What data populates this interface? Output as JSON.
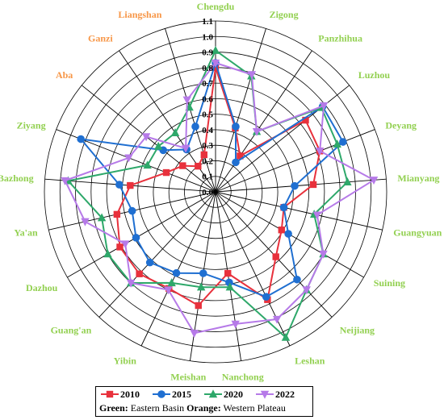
{
  "chart_data": {
    "type": "radar",
    "categories": [
      "Chengdu",
      "Zigong",
      "Panzhihua",
      "Luzhou",
      "Deyang",
      "Mianyang",
      "Guangyuan",
      "Suining",
      "Neijiang",
      "Leshan",
      "Nanchong",
      "Meishan",
      "Yibin",
      "Guang'an",
      "Dazhou",
      "Ya'an",
      "Bazhong",
      "Ziyang",
      "Aba",
      "Ganzi",
      "Liangshan"
    ],
    "category_colors": [
      "#92d050",
      "#92d050",
      "#92d050",
      "#92d050",
      "#92d050",
      "#92d050",
      "#92d050",
      "#92d050",
      "#92d050",
      "#92d050",
      "#92d050",
      "#92d050",
      "#92d050",
      "#92d050",
      "#92d050",
      "#92d050",
      "#92d050",
      "#92d050",
      "#f79646",
      "#f79646",
      "#f79646"
    ],
    "rlim": [
      0,
      1.1
    ],
    "ticks": [
      "0.0",
      "0.1",
      "0.2",
      "0.3",
      "0.4",
      "0.5",
      "0.6",
      "0.7",
      "0.8",
      "0.9",
      "1.0",
      "1.1"
    ],
    "series": [
      {
        "name": "2010",
        "color": "#e8313c",
        "marker": "square",
        "values": [
          0.8,
          0.43,
          0.28,
          0.74,
          0.72,
          0.63,
          0.45,
          0.49,
          0.57,
          0.77,
          0.53,
          0.74,
          0.69,
          0.72,
          0.71,
          0.65,
          0.55,
          0.34,
          0.27,
          0.2,
          0.25
        ]
      },
      {
        "name": "2015",
        "color": "#1f6fd1",
        "marker": "circle",
        "values": [
          0.83,
          0.44,
          0.23,
          0.88,
          0.88,
          0.51,
          0.45,
          0.54,
          0.77,
          0.75,
          0.59,
          0.53,
          0.58,
          0.62,
          0.59,
          0.55,
          0.62,
          0.93,
          0.43,
          0.33,
          0.44
        ]
      },
      {
        "name": "2020",
        "color": "#2ea86a",
        "marker": "triangle",
        "values": [
          0.91,
          0.78,
          0.47,
          0.87,
          0.84,
          0.85,
          0.65,
          0.8,
          0.86,
          1.04,
          0.62,
          0.62,
          0.65,
          0.8,
          0.8,
          0.75,
          0.95,
          0.47,
          0.47,
          0.46,
          0.57
        ]
      },
      {
        "name": "2022",
        "color": "#b67ae8",
        "marker": "triangle-down",
        "values": [
          0.83,
          0.79,
          0.47,
          0.89,
          0.72,
          1.02,
          0.67,
          0.8,
          0.86,
          0.91,
          0.86,
          0.92,
          0.7,
          0.8,
          0.67,
          0.86,
          0.97,
          0.6,
          0.57,
          0.34,
          0.62
        ]
      }
    ],
    "grid": true,
    "legend_position": "bottom"
  },
  "legend": {
    "note_green_key": "Green:",
    "note_green_value": "Eastern Basin",
    "note_orange_key": "Orange:",
    "note_orange_value": "Western Plateau"
  }
}
